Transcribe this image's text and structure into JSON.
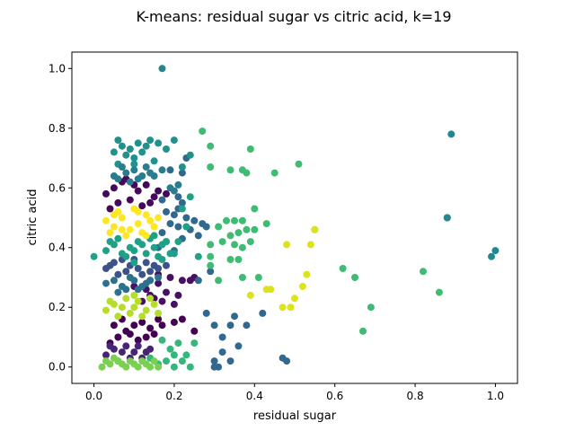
{
  "chart_data": {
    "type": "scatter",
    "title": "K-means: residual sugar vs citric acid, k=19",
    "xlabel": "residual sugar",
    "ylabel": "citric acid",
    "xlim": [
      -0.055,
      1.055
    ],
    "ylim": [
      -0.055,
      1.055
    ],
    "xticks": [
      "0.0",
      "0.2",
      "0.4",
      "0.6",
      "0.8",
      "1.0"
    ],
    "yticks": [
      "0.0",
      "0.2",
      "0.4",
      "0.6",
      "0.8",
      "1.0"
    ],
    "grid": false,
    "legend": "none",
    "colormap": "viridis",
    "series": [
      {
        "color": "#440154",
        "points": [
          [
            0.04,
            0.08
          ],
          [
            0.06,
            0.1
          ],
          [
            0.08,
            0.12
          ],
          [
            0.1,
            0.14
          ],
          [
            0.12,
            0.15
          ],
          [
            0.14,
            0.13
          ],
          [
            0.16,
            0.16
          ],
          [
            0.05,
            0.14
          ],
          [
            0.09,
            0.11
          ],
          [
            0.11,
            0.09
          ],
          [
            0.13,
            0.1
          ],
          [
            0.07,
            0.16
          ],
          [
            0.15,
            0.11
          ],
          [
            0.17,
            0.14
          ],
          [
            0.2,
            0.15
          ],
          [
            0.22,
            0.16
          ],
          [
            0.25,
            0.12
          ]
        ]
      },
      {
        "color": "#46085c",
        "points": [
          [
            0.03,
            0.58
          ],
          [
            0.05,
            0.6
          ],
          [
            0.07,
            0.62
          ],
          [
            0.09,
            0.56
          ],
          [
            0.11,
            0.59
          ],
          [
            0.13,
            0.61
          ],
          [
            0.15,
            0.57
          ],
          [
            0.06,
            0.55
          ],
          [
            0.08,
            0.63
          ],
          [
            0.12,
            0.54
          ],
          [
            0.14,
            0.55
          ],
          [
            0.16,
            0.59
          ],
          [
            0.18,
            0.58
          ],
          [
            0.1,
            0.61
          ],
          [
            0.04,
            0.53
          ]
        ]
      },
      {
        "color": "#471063",
        "points": [
          [
            0.1,
            0.27
          ],
          [
            0.12,
            0.22
          ],
          [
            0.14,
            0.24
          ],
          [
            0.16,
            0.28
          ],
          [
            0.18,
            0.25
          ],
          [
            0.2,
            0.21
          ],
          [
            0.22,
            0.29
          ],
          [
            0.24,
            0.29
          ],
          [
            0.13,
            0.26
          ],
          [
            0.15,
            0.23
          ],
          [
            0.17,
            0.22
          ],
          [
            0.19,
            0.3
          ],
          [
            0.21,
            0.24
          ],
          [
            0.25,
            0.3
          ],
          [
            0.16,
            0.31
          ],
          [
            0.14,
            0.29
          ]
        ]
      },
      {
        "color": "#482475",
        "points": [
          [
            0.03,
            0.04
          ],
          [
            0.05,
            0.06
          ],
          [
            0.07,
            0.05
          ],
          [
            0.09,
            0.03
          ],
          [
            0.11,
            0.07
          ],
          [
            0.13,
            0.05
          ],
          [
            0.06,
            0.02
          ],
          [
            0.08,
            0.07
          ],
          [
            0.1,
            0.05
          ],
          [
            0.12,
            0.03
          ],
          [
            0.04,
            0.07
          ],
          [
            0.14,
            0.06
          ]
        ]
      },
      {
        "color": "#3b528b",
        "points": [
          [
            0.03,
            0.33
          ],
          [
            0.05,
            0.35
          ],
          [
            0.07,
            0.36
          ],
          [
            0.09,
            0.34
          ],
          [
            0.11,
            0.33
          ],
          [
            0.13,
            0.35
          ],
          [
            0.15,
            0.34
          ],
          [
            0.06,
            0.31
          ],
          [
            0.08,
            0.32
          ],
          [
            0.1,
            0.36
          ],
          [
            0.12,
            0.31
          ],
          [
            0.14,
            0.32
          ],
          [
            0.16,
            0.33
          ],
          [
            0.18,
            0.34
          ],
          [
            0.04,
            0.34
          ]
        ]
      },
      {
        "color": "#2c728e",
        "points": [
          [
            0.03,
            0.28
          ],
          [
            0.05,
            0.29
          ],
          [
            0.07,
            0.27
          ],
          [
            0.09,
            0.3
          ],
          [
            0.11,
            0.26
          ],
          [
            0.13,
            0.28
          ],
          [
            0.06,
            0.25
          ],
          [
            0.08,
            0.26
          ],
          [
            0.1,
            0.29
          ],
          [
            0.12,
            0.27
          ],
          [
            0.14,
            0.29
          ],
          [
            0.16,
            0.3
          ]
        ]
      },
      {
        "color": "#31688e",
        "points": [
          [
            0.17,
            0.45
          ],
          [
            0.19,
            0.48
          ],
          [
            0.21,
            0.47
          ],
          [
            0.23,
            0.5
          ],
          [
            0.25,
            0.49
          ],
          [
            0.27,
            0.48
          ],
          [
            0.22,
            0.43
          ],
          [
            0.18,
            0.42
          ],
          [
            0.2,
            0.51
          ],
          [
            0.26,
            0.44
          ],
          [
            0.24,
            0.46
          ],
          [
            0.28,
            0.47
          ],
          [
            0.21,
            0.53
          ],
          [
            0.16,
            0.4
          ],
          [
            0.2,
            0.39
          ],
          [
            0.22,
            0.55
          ],
          [
            0.17,
            0.56
          ],
          [
            0.18,
            0.52
          ],
          [
            0.21,
            0.57
          ],
          [
            0.19,
            0.66
          ],
          [
            0.22,
            0.65
          ],
          [
            0.23,
            0.7
          ],
          [
            0.29,
            0.32
          ],
          [
            0.26,
            0.29
          ],
          [
            0.28,
            0.18
          ],
          [
            0.3,
            0.14
          ],
          [
            0.32,
            0.1
          ],
          [
            0.34,
            0.14
          ],
          [
            0.35,
            0.17
          ],
          [
            0.38,
            0.14
          ],
          [
            0.42,
            0.18
          ],
          [
            0.36,
            0.07
          ],
          [
            0.32,
            0.05
          ],
          [
            0.3,
            0.0
          ],
          [
            0.31,
            0.0
          ],
          [
            0.47,
            0.03
          ],
          [
            0.48,
            0.02
          ],
          [
            0.88,
            0.5
          ],
          [
            0.3,
            0.02
          ],
          [
            0.34,
            0.02
          ]
        ]
      },
      {
        "color": "#21918c",
        "points": [
          [
            0.05,
            0.72
          ],
          [
            0.07,
            0.74
          ],
          [
            0.09,
            0.73
          ],
          [
            0.11,
            0.75
          ],
          [
            0.13,
            0.74
          ],
          [
            0.06,
            0.76
          ],
          [
            0.08,
            0.71
          ],
          [
            0.12,
            0.72
          ],
          [
            0.15,
            0.69
          ],
          [
            0.18,
            0.73
          ],
          [
            0.22,
            0.67
          ],
          [
            0.24,
            0.71
          ],
          [
            0.1,
            0.7
          ],
          [
            0.14,
            0.76
          ],
          [
            0.16,
            0.75
          ],
          [
            0.2,
            0.76
          ],
          [
            0.06,
            0.68
          ],
          [
            0.1,
            0.68
          ]
        ]
      },
      {
        "color": "#287d8e",
        "points": [
          [
            0.06,
            0.63
          ],
          [
            0.08,
            0.65
          ],
          [
            0.1,
            0.66
          ],
          [
            0.12,
            0.64
          ],
          [
            0.14,
            0.65
          ],
          [
            0.07,
            0.67
          ],
          [
            0.09,
            0.62
          ],
          [
            0.11,
            0.63
          ],
          [
            0.13,
            0.67
          ],
          [
            0.15,
            0.64
          ],
          [
            0.05,
            0.64
          ],
          [
            0.17,
            0.66
          ],
          [
            0.19,
            0.6
          ],
          [
            0.2,
            0.59
          ],
          [
            0.21,
            0.61
          ]
        ]
      },
      {
        "color": "#1fa187",
        "points": [
          [
            0.0,
            0.37
          ],
          [
            0.03,
            0.39
          ],
          [
            0.05,
            0.41
          ],
          [
            0.07,
            0.38
          ],
          [
            0.09,
            0.4
          ],
          [
            0.11,
            0.42
          ],
          [
            0.13,
            0.38
          ],
          [
            0.15,
            0.4
          ],
          [
            0.17,
            0.41
          ],
          [
            0.19,
            0.38
          ],
          [
            0.04,
            0.42
          ],
          [
            0.06,
            0.43
          ],
          [
            0.08,
            0.37
          ],
          [
            0.1,
            0.39
          ],
          [
            0.12,
            0.41
          ],
          [
            0.14,
            0.43
          ],
          [
            0.16,
            0.37
          ],
          [
            0.18,
            0.42
          ],
          [
            0.2,
            0.38
          ],
          [
            0.21,
            0.42
          ],
          [
            0.15,
            0.44
          ],
          [
            0.26,
            0.37
          ],
          [
            0.23,
            0.47
          ],
          [
            0.22,
            0.53
          ],
          [
            0.24,
            0.57
          ],
          [
            0.17,
            0.36
          ],
          [
            0.1,
            0.35
          ]
        ]
      },
      {
        "color": "#35b779",
        "points": [
          [
            0.14,
            0.03
          ],
          [
            0.16,
            0.01
          ],
          [
            0.18,
            0.02
          ],
          [
            0.2,
            0.0
          ],
          [
            0.22,
            0.02
          ],
          [
            0.19,
            0.06
          ],
          [
            0.21,
            0.08
          ],
          [
            0.23,
            0.04
          ],
          [
            0.17,
            0.09
          ],
          [
            0.24,
            0.0
          ],
          [
            0.25,
            0.08
          ],
          [
            0.2,
            0.04
          ]
        ]
      },
      {
        "color": "#3fbc73",
        "points": [
          [
            0.27,
            0.79
          ],
          [
            0.29,
            0.74
          ],
          [
            0.29,
            0.67
          ],
          [
            0.34,
            0.66
          ],
          [
            0.37,
            0.66
          ],
          [
            0.38,
            0.65
          ],
          [
            0.39,
            0.73
          ],
          [
            0.45,
            0.65
          ],
          [
            0.51,
            0.68
          ],
          [
            0.33,
            0.49
          ],
          [
            0.35,
            0.49
          ],
          [
            0.37,
            0.49
          ],
          [
            0.31,
            0.47
          ],
          [
            0.34,
            0.44
          ],
          [
            0.36,
            0.45
          ],
          [
            0.32,
            0.42
          ],
          [
            0.35,
            0.41
          ],
          [
            0.37,
            0.4
          ],
          [
            0.4,
            0.53
          ],
          [
            0.43,
            0.48
          ],
          [
            0.38,
            0.46
          ],
          [
            0.4,
            0.46
          ],
          [
            0.39,
            0.42
          ],
          [
            0.29,
            0.37
          ],
          [
            0.29,
            0.34
          ],
          [
            0.31,
            0.29
          ],
          [
            0.34,
            0.36
          ],
          [
            0.36,
            0.36
          ],
          [
            0.37,
            0.3
          ],
          [
            0.41,
            0.3
          ],
          [
            0.55,
            0.46
          ],
          [
            0.62,
            0.33
          ],
          [
            0.65,
            0.3
          ],
          [
            0.82,
            0.32
          ],
          [
            0.86,
            0.25
          ],
          [
            0.69,
            0.2
          ],
          [
            0.67,
            0.12
          ],
          [
            0.29,
            0.41
          ]
        ]
      },
      {
        "color": "#fde725",
        "points": [
          [
            0.03,
            0.49
          ],
          [
            0.05,
            0.47
          ],
          [
            0.07,
            0.5
          ],
          [
            0.09,
            0.46
          ],
          [
            0.11,
            0.48
          ],
          [
            0.13,
            0.51
          ],
          [
            0.15,
            0.47
          ],
          [
            0.04,
            0.45
          ],
          [
            0.06,
            0.52
          ],
          [
            0.08,
            0.44
          ],
          [
            0.1,
            0.53
          ],
          [
            0.12,
            0.45
          ],
          [
            0.14,
            0.49
          ],
          [
            0.16,
            0.5
          ],
          [
            0.05,
            0.51
          ],
          [
            0.07,
            0.46
          ],
          [
            0.13,
            0.44
          ],
          [
            0.11,
            0.52
          ]
        ]
      },
      {
        "color": "#dce319",
        "points": [
          [
            0.39,
            0.24
          ],
          [
            0.43,
            0.26
          ],
          [
            0.44,
            0.26
          ],
          [
            0.47,
            0.2
          ],
          [
            0.49,
            0.2
          ],
          [
            0.5,
            0.23
          ],
          [
            0.52,
            0.27
          ],
          [
            0.53,
            0.31
          ],
          [
            0.54,
            0.41
          ],
          [
            0.48,
            0.41
          ],
          [
            0.55,
            0.46
          ]
        ]
      },
      {
        "color": "#b5de2b",
        "points": [
          [
            0.03,
            0.19
          ],
          [
            0.05,
            0.21
          ],
          [
            0.07,
            0.2
          ],
          [
            0.09,
            0.18
          ],
          [
            0.11,
            0.22
          ],
          [
            0.13,
            0.19
          ],
          [
            0.15,
            0.21
          ],
          [
            0.06,
            0.17
          ],
          [
            0.08,
            0.23
          ],
          [
            0.1,
            0.2
          ],
          [
            0.12,
            0.17
          ],
          [
            0.14,
            0.23
          ],
          [
            0.04,
            0.22
          ],
          [
            0.16,
            0.18
          ],
          [
            0.1,
            0.24
          ]
        ]
      },
      {
        "color": "#7ad151",
        "points": [
          [
            0.02,
            0.0
          ],
          [
            0.04,
            0.01
          ],
          [
            0.06,
            0.02
          ],
          [
            0.08,
            0.0
          ],
          [
            0.1,
            0.01
          ],
          [
            0.12,
            0.02
          ],
          [
            0.14,
            0.0
          ],
          [
            0.05,
            0.03
          ],
          [
            0.07,
            0.01
          ],
          [
            0.09,
            0.02
          ],
          [
            0.11,
            0.0
          ],
          [
            0.13,
            0.01
          ],
          [
            0.15,
            0.02
          ],
          [
            0.03,
            0.02
          ],
          [
            0.16,
            0.0
          ]
        ]
      },
      {
        "color": "#24868e",
        "points": [
          [
            0.17,
            1.0
          ],
          [
            0.89,
            0.78
          ],
          [
            0.99,
            0.37
          ],
          [
            1.0,
            0.39
          ],
          [
            0.88,
            0.5
          ]
        ]
      }
    ]
  }
}
